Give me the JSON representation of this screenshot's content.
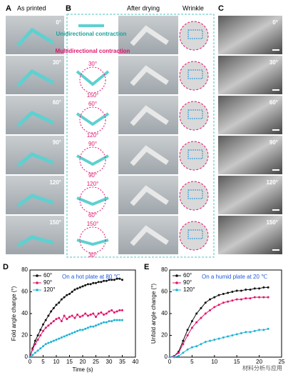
{
  "panels": {
    "A": {
      "letter": "A",
      "title": "As printed",
      "angles": [
        "0°",
        "30°",
        "60°",
        "90°",
        "120°",
        "150°"
      ]
    },
    "B": {
      "letter": "B",
      "uni": "Unidirectional contraction",
      "multi": "Multidirectional contraction",
      "labels": [
        [
          "30°",
          "150°"
        ],
        [
          "60°",
          "120°"
        ],
        [
          "90°",
          "90°"
        ],
        [
          "120°",
          "60°"
        ],
        [
          "150°",
          "30°"
        ]
      ]
    },
    "drying": {
      "title": "After drying"
    },
    "wrinkle": {
      "title": "Wrinkle"
    },
    "C": {
      "letter": "C",
      "angles": [
        "0°",
        "30°",
        "60°",
        "90°",
        "120°",
        "150°"
      ]
    }
  },
  "chart_data": [
    {
      "type": "line",
      "letter": "D",
      "annotation": "On a hot plate at 80 ℃",
      "xlabel": "Time (s)",
      "ylabel": "Fold angle change (°)",
      "x": [
        0,
        1,
        2,
        3,
        4,
        5,
        6,
        7,
        8,
        9,
        10,
        11,
        12,
        13,
        14,
        15,
        16,
        17,
        18,
        19,
        20,
        21,
        22,
        23,
        24,
        25,
        26,
        27,
        28,
        29,
        30,
        31,
        32,
        33,
        34,
        35
      ],
      "series": [
        {
          "name": "60°",
          "color": "#111111",
          "values": [
            0,
            8,
            15,
            20,
            25,
            30,
            34,
            38,
            42,
            45,
            48,
            50,
            53,
            55,
            57,
            58,
            60,
            62,
            63,
            64,
            65,
            66,
            67,
            67,
            68,
            68,
            69,
            69,
            70,
            70,
            71,
            71,
            71,
            72,
            72,
            71
          ]
        },
        {
          "name": "90°",
          "color": "#e0156e",
          "values": [
            0,
            7,
            12,
            16,
            20,
            24,
            27,
            29,
            31,
            33,
            35,
            36,
            33,
            38,
            35,
            37,
            38,
            36,
            39,
            37,
            38,
            40,
            38,
            39,
            40,
            37,
            40,
            41,
            39,
            40,
            42,
            43,
            41,
            42,
            43,
            43
          ]
        },
        {
          "name": "120°",
          "color": "#1fb2d6",
          "values": [
            0,
            2,
            4,
            6,
            8,
            10,
            12,
            13,
            14,
            15,
            16,
            17,
            18,
            19,
            20,
            21,
            22,
            23,
            24,
            25,
            25,
            26,
            27,
            28,
            28,
            29,
            30,
            31,
            32,
            32,
            33,
            33,
            34,
            34,
            34,
            34
          ]
        }
      ],
      "xlim": [
        0,
        40
      ],
      "xticks": [
        0,
        5,
        10,
        15,
        20,
        25,
        30,
        35,
        40
      ],
      "ylim": [
        0,
        80
      ],
      "yticks": [
        0,
        20,
        40,
        60,
        80
      ],
      "legend": "top-left"
    },
    {
      "type": "line",
      "letter": "E",
      "annotation": "On a  humid plate at 20 ℃",
      "ylabel": "Unfold angle change (°)",
      "x": [
        0,
        1,
        2,
        3,
        4,
        5,
        6,
        7,
        8,
        9,
        10,
        11,
        12,
        13,
        14,
        15,
        16,
        17,
        18,
        19,
        20,
        21,
        22
      ],
      "series": [
        {
          "name": "60°",
          "color": "#111111",
          "values": [
            0,
            1,
            5,
            15,
            25,
            33,
            40,
            45,
            50,
            53,
            55,
            57,
            58,
            59,
            60,
            61,
            61,
            62,
            62,
            63,
            63,
            64,
            64
          ]
        },
        {
          "name": "90°",
          "color": "#e0156e",
          "values": [
            0,
            1,
            4,
            12,
            20,
            27,
            32,
            36,
            40,
            43,
            46,
            48,
            50,
            51,
            52,
            53,
            53,
            54,
            54,
            55,
            55,
            55,
            55
          ]
        },
        {
          "name": "120°",
          "color": "#1fb2d6",
          "values": [
            0,
            0,
            1,
            4,
            7,
            9,
            10,
            12,
            14,
            15,
            16,
            17,
            18,
            19,
            20,
            21,
            22,
            23,
            23,
            24,
            25,
            25,
            26
          ]
        }
      ],
      "xlim": [
        0,
        25
      ],
      "xticks": [
        0,
        5,
        10,
        15,
        20,
        25
      ],
      "ylim": [
        0,
        80
      ],
      "yticks": [
        0,
        20,
        40,
        60,
        80
      ],
      "legend": "top-left"
    }
  ],
  "watermark": "材料分析与应用"
}
